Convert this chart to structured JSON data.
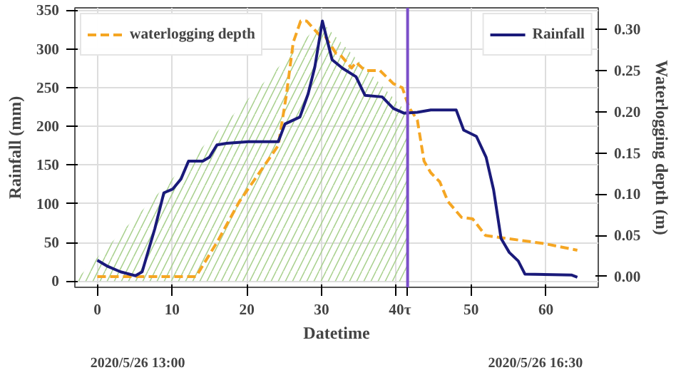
{
  "chart_data": {
    "type": "line",
    "xlabel": "Datetime",
    "ylabel": "Rainfall (mm)",
    "y2label": "Waterlogging depth (m)",
    "xlim": [
      -3,
      67
    ],
    "xticks": [
      0,
      10,
      20,
      30,
      40,
      50,
      60
    ],
    "ylim": [
      -8,
      353
    ],
    "yticks": [
      0,
      50,
      100,
      150,
      200,
      250,
      300,
      350
    ],
    "y2lim": [
      -0.013,
      0.326
    ],
    "y2ticks": [
      {
        "value": 0,
        "label": "0.00"
      },
      {
        "value": 0.05,
        "label": "0.05"
      },
      {
        "value": 0.1,
        "label": "0.10"
      },
      {
        "value": 0.15,
        "label": "0.15"
      },
      {
        "value": 0.2,
        "label": "0.20"
      },
      {
        "value": 0.25,
        "label": "0.25"
      },
      {
        "value": 0.3,
        "label": "0.30"
      }
    ],
    "grid": true,
    "legend": "top",
    "line_style": "solid",
    "series": [
      {
        "type": "area",
        "color": "#a9d18e",
        "x": [
          -3,
          30,
          41.5
        ],
        "values": [
          0,
          335,
          217
        ]
      },
      {
        "name": "waterlogging depth",
        "color": "#f5a623",
        "line_style": "dashed",
        "axis": "y2",
        "x": [
          0,
          13.2,
          16.1,
          19,
          24.2,
          25.3,
          26.2,
          27.2,
          28,
          29.7,
          30.5,
          31.9,
          32.5,
          34,
          34.6,
          35.8,
          37.8,
          39.6,
          40.8,
          41.7,
          42.8,
          43.7,
          44.6,
          45.8,
          46.9,
          48.7,
          50.2,
          51.9,
          53.4,
          59.8,
          64.2
        ],
        "values": [
          0.0,
          0.0,
          0.043,
          0.091,
          0.159,
          0.221,
          0.284,
          0.31,
          0.31,
          0.293,
          0.291,
          0.271,
          0.269,
          0.253,
          0.26,
          0.25,
          0.25,
          0.234,
          0.229,
          0.205,
          0.19,
          0.14,
          0.126,
          0.115,
          0.091,
          0.072,
          0.07,
          0.05,
          0.048,
          0.04,
          0.032
        ]
      },
      {
        "name": "Rainfall",
        "color": "#1a1a7a",
        "x": [
          0,
          1.4,
          3.1,
          5.1,
          6,
          7.7,
          8.9,
          10.1,
          11.2,
          12.2,
          14.1,
          15,
          16,
          17.3,
          20.2,
          24.2,
          25.1,
          27.1,
          28.2,
          29.1,
          30.1,
          31.4,
          32.8,
          34.6,
          35.8,
          38.1,
          39.6,
          41,
          42.8,
          44.6,
          48,
          49,
          50.7,
          52,
          53,
          54,
          55.1,
          56.3,
          57.2,
          63.4,
          64.2
        ],
        "values": [
          27,
          19,
          12,
          7,
          12,
          68,
          114,
          119,
          132,
          155,
          155,
          160,
          176,
          178,
          180,
          180,
          203,
          212,
          242,
          277,
          336,
          286,
          275,
          264,
          240,
          238,
          223,
          217,
          218,
          221,
          221,
          195,
          187,
          160,
          118,
          55,
          37,
          26,
          9,
          8,
          5
        ]
      }
    ],
    "ref_lines": [
      {
        "axis": "x",
        "value": 41.5,
        "label": "τ",
        "color": "#7b4fc9"
      }
    ],
    "annotations": [
      "2020/5/26 13:00",
      "2020/5/26 16:30"
    ]
  }
}
